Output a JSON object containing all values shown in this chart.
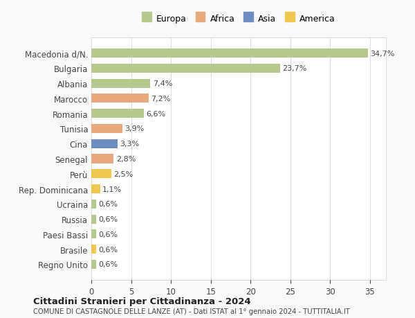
{
  "categories": [
    "Macedonia d/N.",
    "Bulgaria",
    "Albania",
    "Marocco",
    "Romania",
    "Tunisia",
    "Cina",
    "Senegal",
    "Perù",
    "Rep. Dominicana",
    "Ucraina",
    "Russia",
    "Paesi Bassi",
    "Brasile",
    "Regno Unito"
  ],
  "values": [
    34.7,
    23.7,
    7.4,
    7.2,
    6.6,
    3.9,
    3.3,
    2.8,
    2.5,
    1.1,
    0.6,
    0.6,
    0.6,
    0.6,
    0.6
  ],
  "labels": [
    "34,7%",
    "23,7%",
    "7,4%",
    "7,2%",
    "6,6%",
    "3,9%",
    "3,3%",
    "2,8%",
    "2,5%",
    "1,1%",
    "0,6%",
    "0,6%",
    "0,6%",
    "0,6%",
    "0,6%"
  ],
  "colors": [
    "#b5c98e",
    "#b5c98e",
    "#b5c98e",
    "#e8a87c",
    "#b5c98e",
    "#e8a87c",
    "#6b8ebe",
    "#e8a87c",
    "#f0c850",
    "#f0c850",
    "#b5c98e",
    "#b5c98e",
    "#b5c98e",
    "#f0c850",
    "#b5c98e"
  ],
  "legend_labels": [
    "Europa",
    "Africa",
    "Asia",
    "America"
  ],
  "legend_colors": [
    "#b5c98e",
    "#e8a87c",
    "#6b8ebe",
    "#f0c850"
  ],
  "title": "Cittadini Stranieri per Cittadinanza - 2024",
  "subtitle": "COMUNE DI CASTAGNOLE DELLE LANZE (AT) - Dati ISTAT al 1° gennaio 2024 - TUTTITALIA.IT",
  "xlim": [
    0,
    37
  ],
  "xticks": [
    0,
    5,
    10,
    15,
    20,
    25,
    30,
    35
  ],
  "background_color": "#f9f9f9",
  "plot_bg_color": "#ffffff",
  "grid_color": "#dddddd"
}
